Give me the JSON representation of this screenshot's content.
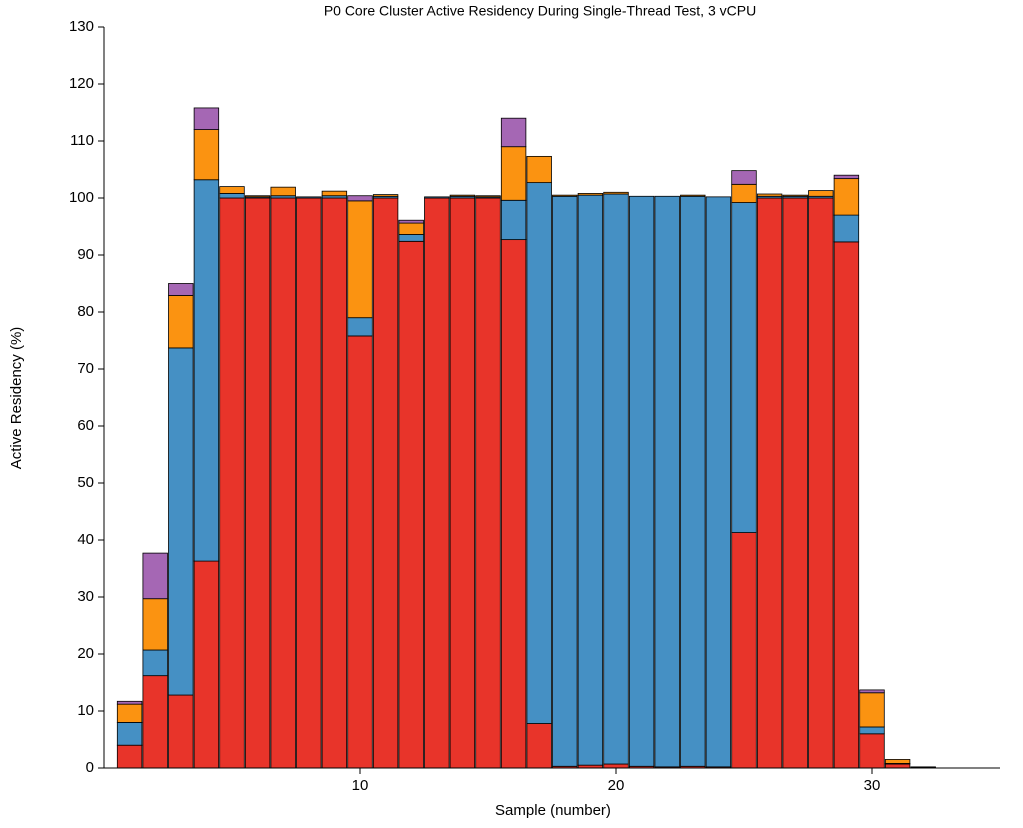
{
  "chart_data": {
    "type": "stacked_bar",
    "title": "P0 Core Cluster Active Residency During Single-Thread Test, 3 vCPU",
    "x_label": "Sample (number)",
    "y_label": "Active Residency (%)",
    "x": [
      1,
      2,
      3,
      4,
      5,
      6,
      7,
      8,
      9,
      10,
      11,
      12,
      13,
      14,
      15,
      16,
      17,
      18,
      19,
      20,
      21,
      22,
      23,
      24,
      25,
      26,
      27,
      28,
      29,
      30,
      31,
      32
    ],
    "series": [
      {
        "color": "#e8342a",
        "values": [
          4,
          16.2,
          12.8,
          36.3,
          100,
          100,
          100,
          100,
          100,
          75.8,
          100,
          92.4,
          100,
          100,
          100,
          92.7,
          7.8,
          0.3,
          0.5,
          0.7,
          0.3,
          0.2,
          0.3,
          0.2,
          41.3,
          100,
          100,
          100,
          92.3,
          6,
          0.7,
          0.1
        ]
      },
      {
        "color": "#4590c4",
        "values": [
          4,
          4.5,
          60.9,
          66.9,
          0.8,
          0.2,
          0.4,
          0.2,
          0.4,
          3.2,
          0.3,
          1.2,
          0.2,
          0.3,
          0.2,
          6.9,
          94.9,
          100,
          100,
          100,
          100,
          100.1,
          100,
          100,
          57.9,
          0.3,
          0.3,
          0.3,
          4.7,
          1.2,
          0.1,
          0.1
        ]
      },
      {
        "color": "#fb9311",
        "values": [
          3.2,
          9,
          9.2,
          8.8,
          1.2,
          0.2,
          1.5,
          0,
          0.8,
          20.5,
          0.3,
          2,
          0,
          0.2,
          0.2,
          9.4,
          4.6,
          0.2,
          0.3,
          0.3,
          0,
          0,
          0.2,
          0,
          3.2,
          0.4,
          0.2,
          1,
          6.4,
          6,
          0.7,
          0
        ]
      },
      {
        "color": "#a567b4",
        "values": [
          0.5,
          8,
          2.1,
          3.8,
          0,
          0,
          0,
          0,
          0,
          0.9,
          0,
          0.5,
          0,
          0,
          0,
          5,
          0,
          0,
          0,
          0,
          0,
          0,
          0,
          0,
          2.4,
          0,
          0,
          0,
          0.6,
          0.5,
          0,
          0
        ]
      }
    ],
    "xlim": [
      0,
      35
    ],
    "xticks": [
      10,
      20,
      30
    ],
    "ylim": [
      0,
      130
    ],
    "yticks": [
      0,
      10,
      20,
      30,
      40,
      50,
      60,
      70,
      80,
      90,
      100,
      110,
      120,
      130
    ]
  }
}
